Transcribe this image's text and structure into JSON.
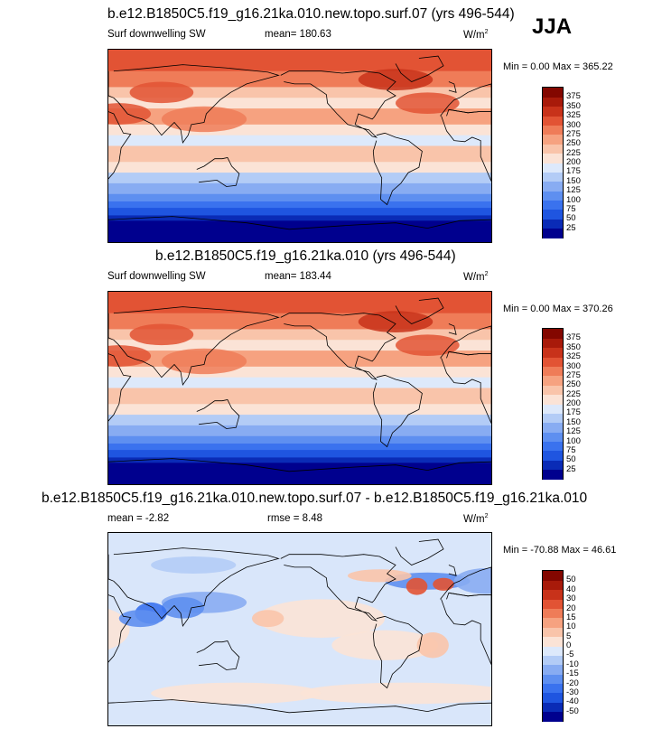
{
  "season": "JJA",
  "panels": [
    {
      "title": "b.e12.B1850C5.f19_g16.21ka.010.new.topo.surf.07 (yrs 496-544)",
      "variable": "Surf downwelling SW",
      "mean": "mean= 180.63",
      "rmse": "",
      "units": "W/m",
      "units_sup": "2",
      "minmax": "Min =   0.00 Max = 365.22"
    },
    {
      "title": "b.e12.B1850C5.f19_g16.21ka.010 (yrs 496-544)",
      "variable": "Surf downwelling SW",
      "mean": "mean= 183.44",
      "rmse": "",
      "units": "W/m",
      "units_sup": "2",
      "minmax": "Min =   0.00 Max = 370.26"
    },
    {
      "title": "b.e12.B1850C5.f19_g16.21ka.010.new.topo.surf.07 - b.e12.B1850C5.f19_g16.21ka.010",
      "variable": "",
      "mean": "mean =  -2.82",
      "rmse": "rmse =   8.48",
      "units": "W/m",
      "units_sup": "2",
      "minmax": "Min = -70.88 Max =  46.61"
    }
  ],
  "chart_data": [
    {
      "type": "heatmap",
      "title": "b.e12.B1850C5.f19_g16.21ka.010.new.topo.surf.07 (yrs 496-544)",
      "variable": "Surf downwelling SW",
      "units": "W/m2",
      "mean": 180.63,
      "min": 0.0,
      "max": 365.22,
      "colorbar_levels": [
        25,
        50,
        75,
        100,
        125,
        150,
        175,
        200,
        225,
        250,
        275,
        300,
        325,
        350,
        375
      ],
      "colorbar_colors": [
        "#00008e",
        "#0a2bb6",
        "#1f55e0",
        "#3a72ee",
        "#5e8ff0",
        "#88acf2",
        "#b3ccf6",
        "#dde9fb",
        "#fbe3d6",
        "#f9c4aa",
        "#f6a280",
        "#ef7c58",
        "#e25334",
        "#c8321a",
        "#a81a0a",
        "#830700"
      ]
    },
    {
      "type": "heatmap",
      "title": "b.e12.B1850C5.f19_g16.21ka.010 (yrs 496-544)",
      "variable": "Surf downwelling SW",
      "units": "W/m2",
      "mean": 183.44,
      "min": 0.0,
      "max": 370.26,
      "colorbar_levels": [
        25,
        50,
        75,
        100,
        125,
        150,
        175,
        200,
        225,
        250,
        275,
        300,
        325,
        350,
        375
      ],
      "colorbar_colors": [
        "#00008e",
        "#0a2bb6",
        "#1f55e0",
        "#3a72ee",
        "#5e8ff0",
        "#88acf2",
        "#b3ccf6",
        "#dde9fb",
        "#fbe3d6",
        "#f9c4aa",
        "#f6a280",
        "#ef7c58",
        "#e25334",
        "#c8321a",
        "#a81a0a",
        "#830700"
      ]
    },
    {
      "type": "heatmap",
      "title": "b.e12.B1850C5.f19_g16.21ka.010.new.topo.surf.07 - b.e12.B1850C5.f19_g16.21ka.010",
      "units": "W/m2",
      "mean": -2.82,
      "rmse": 8.48,
      "min": -70.88,
      "max": 46.61,
      "colorbar_levels": [
        -50,
        -40,
        -30,
        -20,
        -15,
        -10,
        -5,
        0,
        5,
        10,
        15,
        20,
        30,
        40,
        50
      ],
      "colorbar_colors": [
        "#00008e",
        "#0a2bb6",
        "#1f55e0",
        "#3a72ee",
        "#5e8ff0",
        "#88acf2",
        "#b3ccf6",
        "#dde9fb",
        "#fbe3d6",
        "#f9c4aa",
        "#f6a280",
        "#ef7c58",
        "#e25334",
        "#c8321a",
        "#a81a0a",
        "#830700"
      ]
    }
  ]
}
